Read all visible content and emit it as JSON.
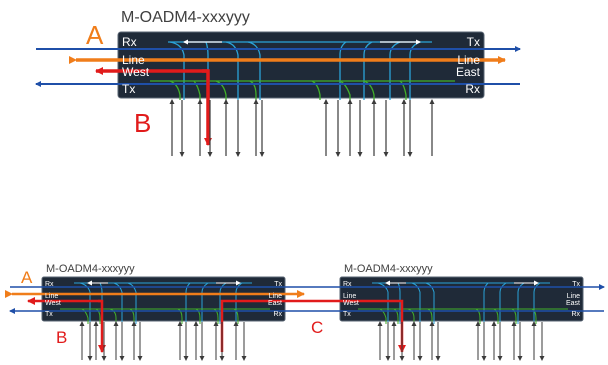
{
  "colors": {
    "panel": "#1f2a38",
    "panel_stroke": "#5a6573",
    "tx_rx_line": "#1f4fa8",
    "express_line": "#f07d1a",
    "drop_line": "#e11b1b",
    "blue_filter": "#2aa3d8",
    "green_filter": "#41b02a",
    "port_arrow": "#3a3a3a",
    "marker_orange": "#f07d1a",
    "marker_red": "#e11b1b"
  },
  "top_diagram": {
    "module_title": "M-OADM4-xxxyyy",
    "labels": {
      "rx_left": "Rx",
      "tx_right": "Tx",
      "line_left": "Line",
      "west_left": "West",
      "line_right": "Line",
      "east_right": "East",
      "tx_left": "Tx",
      "rx_right": "Rx"
    },
    "markers": {
      "a": "A",
      "b": "B"
    }
  },
  "bottom_diagram": {
    "left_module": {
      "module_title": "M-OADM4-xxxyyy",
      "labels": {
        "rx_left": "Rx",
        "tx_right": "Tx",
        "line_left": "Line",
        "west_left": "West",
        "line_right": "Line",
        "east_right": "East",
        "tx_left": "Tx",
        "rx_right": "Rx"
      }
    },
    "right_module": {
      "module_title": "M-OADM4-xxxyyy",
      "labels": {
        "rx_left": "Rx",
        "tx_right": "Tx",
        "line_left": "Line",
        "west_left": "West",
        "line_right": "Line",
        "east_right": "East",
        "tx_left": "Tx",
        "rx_right": "Rx"
      }
    },
    "markers": {
      "a": "A",
      "b": "B",
      "c": "C"
    }
  }
}
